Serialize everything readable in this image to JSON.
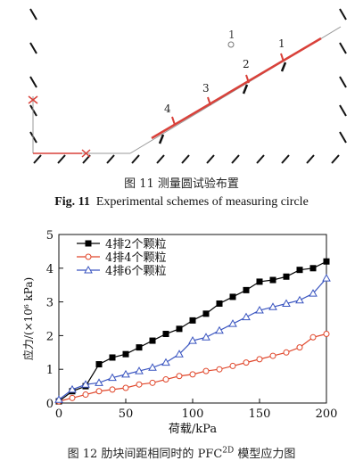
{
  "figure11": {
    "measuring_circle_labels": [
      "1",
      "2",
      "3",
      "4"
    ],
    "isolated_label": "1",
    "caption_cn": "图 11  测量圆试验布置",
    "caption_en_prefix": "Fig. 11",
    "caption_en_text": "Experimental schemes of measuring circle"
  },
  "figure12": {
    "caption_cn_main": "图 12  肋块间距相同时的 PFC",
    "caption_cn_sup": "2D",
    "caption_cn_tail": " 模型应力图",
    "colors": {
      "s1": "#000000",
      "s2": "#e0462a",
      "s3": "#3a55c0"
    }
  },
  "chart_data": {
    "type": "line",
    "xlabel": "荷载/kPa",
    "ylabel": "应力/(×10⁶ kPa)",
    "xlim": [
      0,
      200
    ],
    "ylim": [
      0,
      5
    ],
    "xticks": [
      0,
      50,
      100,
      150,
      200
    ],
    "yticks": [
      0,
      1,
      2,
      3,
      4,
      5
    ],
    "legend_position": "top-left",
    "series": [
      {
        "name": "4排2个颗粒",
        "marker": "square-filled",
        "x": [
          0,
          10,
          20,
          30,
          40,
          50,
          60,
          70,
          80,
          90,
          100,
          110,
          120,
          130,
          140,
          150,
          160,
          170,
          180,
          190,
          200
        ],
        "y": [
          0.05,
          0.35,
          0.5,
          1.15,
          1.35,
          1.45,
          1.65,
          1.85,
          2.05,
          2.2,
          2.45,
          2.65,
          2.95,
          3.15,
          3.35,
          3.6,
          3.65,
          3.75,
          3.95,
          4.0,
          4.2
        ]
      },
      {
        "name": "4排4个颗粒",
        "marker": "circle-open",
        "x": [
          0,
          10,
          20,
          30,
          40,
          50,
          60,
          70,
          80,
          90,
          100,
          110,
          120,
          130,
          140,
          150,
          160,
          170,
          180,
          190,
          200
        ],
        "y": [
          0.05,
          0.15,
          0.25,
          0.35,
          0.4,
          0.45,
          0.55,
          0.6,
          0.7,
          0.8,
          0.85,
          0.95,
          1.0,
          1.1,
          1.2,
          1.3,
          1.4,
          1.5,
          1.65,
          1.95,
          2.05
        ]
      },
      {
        "name": "4排6个颗粒",
        "marker": "triangle-open",
        "x": [
          0,
          10,
          20,
          30,
          40,
          50,
          60,
          70,
          80,
          90,
          100,
          110,
          120,
          130,
          140,
          150,
          160,
          170,
          180,
          190,
          200
        ],
        "y": [
          0.1,
          0.4,
          0.55,
          0.6,
          0.75,
          0.85,
          0.95,
          1.05,
          1.2,
          1.45,
          1.85,
          1.95,
          2.15,
          2.35,
          2.55,
          2.75,
          2.85,
          2.95,
          3.05,
          3.25,
          3.7
        ]
      }
    ]
  }
}
